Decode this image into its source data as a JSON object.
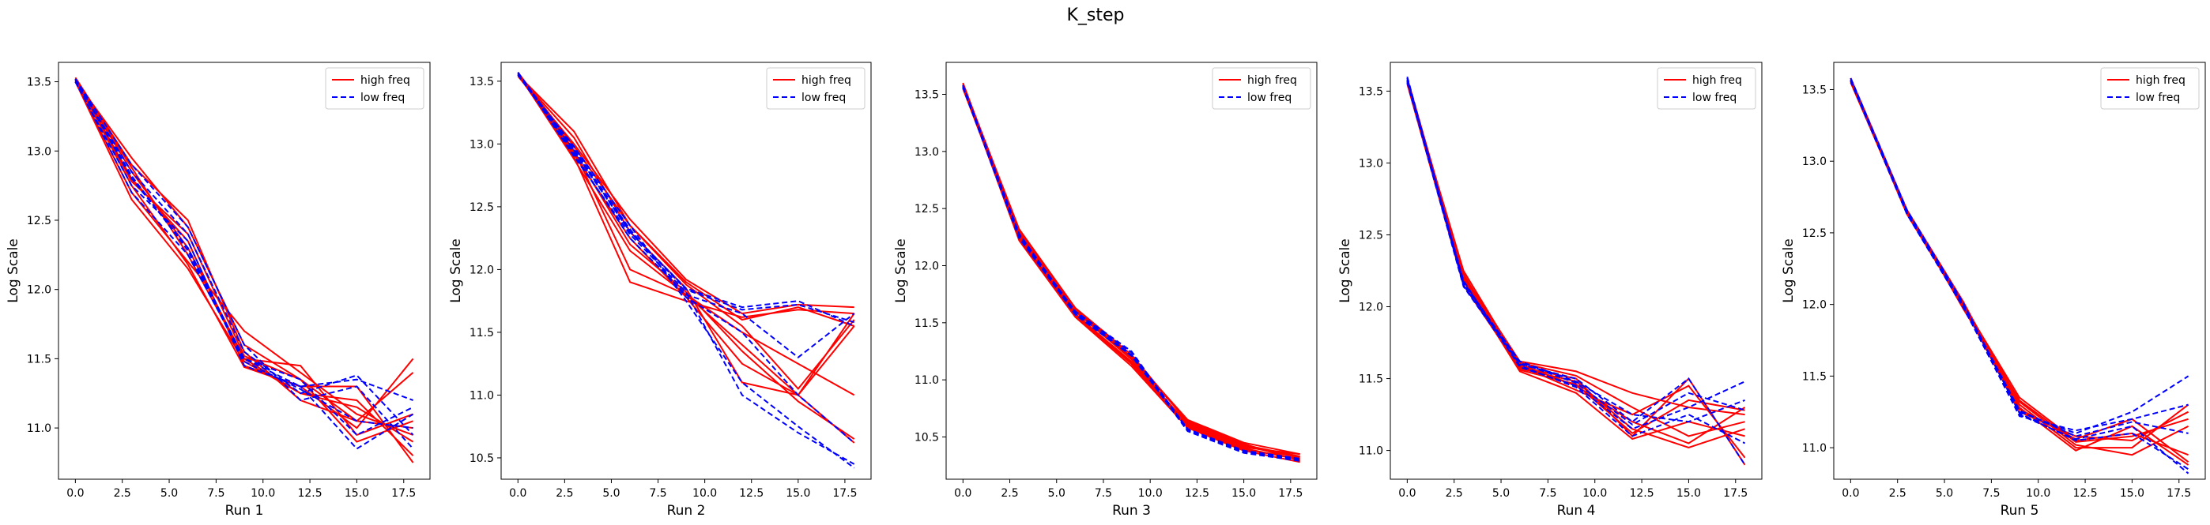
{
  "title": "K_step",
  "legend": {
    "high_label": "high freq",
    "low_label": "low freq",
    "placement": "upper right"
  },
  "colors": {
    "high": "#ff0000",
    "low": "#0000ff"
  },
  "chart_data": [
    {
      "type": "line",
      "xlabel": "Run 1",
      "ylabel": "Log Scale",
      "xlim": [
        -0.9,
        18.9
      ],
      "ylim": [
        10.63,
        13.64
      ],
      "xticks": [
        "0.0",
        "2.5",
        "5.0",
        "7.5",
        "10.0",
        "12.5",
        "15.0",
        "17.5"
      ],
      "yticks": [
        "11.0",
        "11.5",
        "12.0",
        "12.5",
        "13.0",
        "13.5"
      ],
      "x": [
        0,
        3,
        6,
        9,
        12,
        15,
        18
      ],
      "series": [
        {
          "group": "high",
          "values": [
            13.52,
            12.75,
            12.18,
            11.44,
            11.3,
            11.0,
            11.5
          ]
        },
        {
          "group": "high",
          "values": [
            13.52,
            12.85,
            12.3,
            11.5,
            11.25,
            11.2,
            10.8
          ]
        },
        {
          "group": "high",
          "values": [
            13.51,
            12.95,
            12.45,
            11.6,
            11.35,
            10.9,
            11.05
          ]
        },
        {
          "group": "high",
          "values": [
            13.5,
            12.7,
            12.2,
            11.7,
            11.4,
            11.1,
            10.95
          ]
        },
        {
          "group": "high",
          "values": [
            13.53,
            12.9,
            12.5,
            11.55,
            11.2,
            11.05,
            11.4
          ]
        },
        {
          "group": "high",
          "values": [
            13.52,
            12.8,
            12.35,
            11.45,
            11.3,
            11.3,
            10.75
          ]
        },
        {
          "group": "high",
          "values": [
            13.51,
            12.88,
            12.25,
            11.5,
            11.45,
            10.95,
            11.1
          ]
        },
        {
          "group": "high",
          "values": [
            13.5,
            12.65,
            12.15,
            11.48,
            11.25,
            11.15,
            10.9
          ]
        },
        {
          "group": "high",
          "values": [
            13.52,
            12.78,
            12.4,
            11.52,
            11.35,
            11.05,
            11.0
          ]
        },
        {
          "group": "low",
          "values": [
            13.52,
            12.8,
            12.3,
            11.5,
            11.3,
            11.35,
            11.2
          ]
        },
        {
          "group": "low",
          "values": [
            13.51,
            12.85,
            12.4,
            11.55,
            11.25,
            11.38,
            10.95
          ]
        },
        {
          "group": "low",
          "values": [
            13.5,
            12.75,
            12.35,
            11.45,
            11.3,
            10.85,
            11.1
          ]
        },
        {
          "group": "low",
          "values": [
            13.52,
            12.9,
            12.45,
            11.6,
            11.2,
            11.3,
            10.85
          ]
        },
        {
          "group": "low",
          "values": [
            13.51,
            12.7,
            12.25,
            11.5,
            11.35,
            10.95,
            11.15
          ]
        },
        {
          "group": "low",
          "values": [
            13.52,
            12.82,
            12.28,
            11.48,
            11.28,
            11.05,
            11.0
          ]
        }
      ]
    },
    {
      "type": "line",
      "xlabel": "Run 2",
      "ylabel": "Log Scale",
      "xlim": [
        -0.9,
        18.9
      ],
      "ylim": [
        10.33,
        13.65
      ],
      "xticks": [
        "0.0",
        "2.5",
        "5.0",
        "7.5",
        "10.0",
        "12.5",
        "15.0",
        "17.5"
      ],
      "yticks": [
        "10.5",
        "11.0",
        "11.5",
        "12.0",
        "12.5",
        "13.0",
        "13.5"
      ],
      "x": [
        0,
        3,
        6,
        9,
        12,
        15,
        18
      ],
      "series": [
        {
          "group": "high",
          "values": [
            13.56,
            12.9,
            11.9,
            11.75,
            11.62,
            11.68,
            11.65
          ]
        },
        {
          "group": "high",
          "values": [
            13.55,
            13.1,
            12.35,
            11.9,
            11.6,
            11.7,
            11.55
          ]
        },
        {
          "group": "high",
          "values": [
            13.57,
            12.95,
            12.0,
            11.8,
            11.4,
            11.0,
            11.65
          ]
        },
        {
          "group": "high",
          "values": [
            13.55,
            13.05,
            12.3,
            11.85,
            11.1,
            11.0,
            11.55
          ]
        },
        {
          "group": "high",
          "values": [
            13.56,
            12.88,
            12.15,
            11.8,
            11.5,
            11.25,
            11.0
          ]
        },
        {
          "group": "high",
          "values": [
            13.54,
            13.0,
            12.4,
            11.92,
            11.65,
            11.72,
            11.7
          ]
        },
        {
          "group": "high",
          "values": [
            13.55,
            12.92,
            12.25,
            11.78,
            11.25,
            11.0,
            10.62
          ]
        },
        {
          "group": "high",
          "values": [
            13.57,
            12.98,
            12.35,
            11.88,
            11.55,
            11.05,
            11.6
          ]
        },
        {
          "group": "high",
          "values": [
            13.56,
            12.94,
            12.2,
            11.82,
            11.35,
            10.95,
            10.65
          ]
        },
        {
          "group": "low",
          "values": [
            13.57,
            12.95,
            12.3,
            11.85,
            11.7,
            11.75,
            11.55
          ]
        },
        {
          "group": "low",
          "values": [
            13.56,
            12.92,
            12.25,
            11.8,
            11.65,
            11.3,
            11.65
          ]
        },
        {
          "group": "low",
          "values": [
            13.55,
            12.98,
            12.35,
            11.75,
            11.1,
            10.75,
            10.42
          ]
        },
        {
          "group": "low",
          "values": [
            13.57,
            12.9,
            12.28,
            11.82,
            11.0,
            10.7,
            10.45
          ]
        },
        {
          "group": "low",
          "values": [
            13.56,
            12.96,
            12.32,
            11.78,
            11.5,
            11.0,
            10.62
          ]
        },
        {
          "group": "low",
          "values": [
            13.55,
            12.94,
            12.3,
            11.84,
            11.68,
            11.72,
            11.58
          ]
        }
      ]
    },
    {
      "type": "line",
      "xlabel": "Run 3",
      "ylabel": "Log Scale",
      "xlim": [
        -0.9,
        18.9
      ],
      "ylim": [
        10.13,
        13.78
      ],
      "xticks": [
        "0.0",
        "2.5",
        "5.0",
        "7.5",
        "10.0",
        "12.5",
        "15.0",
        "17.5"
      ],
      "yticks": [
        "10.5",
        "11.0",
        "11.5",
        "12.0",
        "12.5",
        "13.0",
        "13.5"
      ],
      "x": [
        0,
        3,
        6,
        9,
        12,
        15,
        18
      ],
      "series": [
        {
          "group": "high",
          "values": [
            13.58,
            12.3,
            11.62,
            11.2,
            10.65,
            10.45,
            10.35
          ]
        },
        {
          "group": "high",
          "values": [
            13.56,
            12.25,
            11.58,
            11.15,
            10.62,
            10.42,
            10.32
          ]
        },
        {
          "group": "high",
          "values": [
            13.6,
            12.28,
            11.6,
            11.18,
            10.6,
            10.4,
            10.3
          ]
        },
        {
          "group": "high",
          "values": [
            13.57,
            12.22,
            11.55,
            11.12,
            10.58,
            10.38,
            10.28
          ]
        },
        {
          "group": "high",
          "values": [
            13.59,
            12.32,
            11.63,
            11.22,
            10.63,
            10.43,
            10.33
          ]
        },
        {
          "group": "high",
          "values": [
            13.55,
            12.26,
            11.57,
            11.16,
            10.61,
            10.41,
            10.35
          ]
        },
        {
          "group": "high",
          "values": [
            13.58,
            12.29,
            11.61,
            11.19,
            10.64,
            10.44,
            10.29
          ]
        },
        {
          "group": "high",
          "values": [
            13.56,
            12.24,
            11.56,
            11.14,
            10.59,
            10.39,
            10.31
          ]
        },
        {
          "group": "low",
          "values": [
            13.57,
            12.27,
            11.6,
            11.25,
            10.56,
            10.37,
            10.3
          ]
        },
        {
          "group": "low",
          "values": [
            13.56,
            12.24,
            11.58,
            11.22,
            10.55,
            10.36,
            10.29
          ]
        },
        {
          "group": "low",
          "values": [
            13.58,
            12.28,
            11.59,
            11.24,
            10.57,
            10.38,
            10.31
          ]
        },
        {
          "group": "low",
          "values": [
            13.57,
            12.26,
            11.57,
            11.21,
            10.56,
            10.37,
            10.3
          ]
        }
      ]
    },
    {
      "type": "line",
      "xlabel": "Run 4",
      "ylabel": "Log Scale",
      "xlim": [
        -0.9,
        18.9
      ],
      "ylim": [
        10.8,
        13.7
      ],
      "xticks": [
        "0.0",
        "2.5",
        "5.0",
        "7.5",
        "10.0",
        "12.5",
        "15.0",
        "17.5"
      ],
      "yticks": [
        "11.0",
        "11.5",
        "12.0",
        "12.5",
        "13.0",
        "13.5"
      ],
      "x": [
        0,
        3,
        6,
        9,
        12,
        15,
        18
      ],
      "series": [
        {
          "group": "high",
          "values": [
            13.58,
            12.2,
            11.58,
            11.5,
            11.1,
            11.5,
            10.9
          ]
        },
        {
          "group": "high",
          "values": [
            13.56,
            12.25,
            11.6,
            11.45,
            11.2,
            11.05,
            11.3
          ]
        },
        {
          "group": "high",
          "values": [
            13.57,
            12.18,
            11.55,
            11.4,
            11.08,
            11.2,
            11.1
          ]
        },
        {
          "group": "high",
          "values": [
            13.59,
            12.22,
            11.62,
            11.55,
            11.4,
            11.3,
            11.25
          ]
        },
        {
          "group": "high",
          "values": [
            13.55,
            12.15,
            11.57,
            11.48,
            11.15,
            11.02,
            11.15
          ]
        },
        {
          "group": "high",
          "values": [
            13.58,
            12.21,
            11.59,
            11.42,
            11.25,
            11.45,
            10.95
          ]
        },
        {
          "group": "high",
          "values": [
            13.57,
            12.19,
            11.61,
            11.52,
            11.3,
            11.1,
            11.2
          ]
        },
        {
          "group": "high",
          "values": [
            13.56,
            12.23,
            11.56,
            11.46,
            11.12,
            11.35,
            11.28
          ]
        },
        {
          "group": "low",
          "values": [
            13.6,
            12.15,
            11.6,
            11.5,
            11.2,
            11.5,
            10.9
          ]
        },
        {
          "group": "low",
          "values": [
            13.57,
            12.18,
            11.58,
            11.45,
            11.15,
            11.3,
            11.48
          ]
        },
        {
          "group": "low",
          "values": [
            13.58,
            12.16,
            11.62,
            11.48,
            11.25,
            11.2,
            11.35
          ]
        },
        {
          "group": "low",
          "values": [
            13.56,
            12.14,
            11.59,
            11.44,
            11.1,
            11.25,
            11.05
          ]
        },
        {
          "group": "low",
          "values": [
            13.59,
            12.17,
            11.61,
            11.47,
            11.18,
            11.4,
            11.28
          ]
        }
      ]
    },
    {
      "type": "line",
      "xlabel": "Run 5",
      "ylabel": "Log Scale",
      "xlim": [
        -0.9,
        18.9
      ],
      "ylim": [
        10.78,
        13.69
      ],
      "xticks": [
        "0.0",
        "2.5",
        "5.0",
        "7.5",
        "10.0",
        "12.5",
        "15.0",
        "17.5"
      ],
      "yticks": [
        "11.0",
        "11.5",
        "12.0",
        "12.5",
        "13.0",
        "13.5"
      ],
      "x": [
        0,
        3,
        6,
        9,
        12,
        15,
        18
      ],
      "series": [
        {
          "group": "high",
          "values": [
            13.57,
            12.65,
            12.0,
            11.35,
            11.05,
            11.1,
            10.95
          ]
        },
        {
          "group": "high",
          "values": [
            13.55,
            12.64,
            11.98,
            11.3,
            11.0,
            11.0,
            11.3
          ]
        },
        {
          "group": "high",
          "values": [
            13.58,
            12.66,
            12.02,
            11.28,
            10.98,
            11.15,
            10.88
          ]
        },
        {
          "group": "high",
          "values": [
            13.56,
            12.63,
            11.99,
            11.25,
            11.08,
            11.05,
            11.25
          ]
        },
        {
          "group": "high",
          "values": [
            13.57,
            12.65,
            12.01,
            11.32,
            11.02,
            10.95,
            11.15
          ]
        },
        {
          "group": "high",
          "values": [
            13.55,
            12.64,
            12.0,
            11.27,
            11.06,
            11.2,
            10.9
          ]
        },
        {
          "group": "high",
          "values": [
            13.58,
            12.66,
            11.97,
            11.33,
            11.04,
            11.08,
            11.2
          ]
        },
        {
          "group": "low",
          "values": [
            13.57,
            12.65,
            12.0,
            11.25,
            11.1,
            11.25,
            11.5
          ]
        },
        {
          "group": "low",
          "values": [
            13.56,
            12.64,
            11.99,
            11.22,
            11.12,
            11.2,
            11.3
          ]
        },
        {
          "group": "low",
          "values": [
            13.58,
            12.66,
            12.01,
            11.24,
            11.05,
            11.1,
            10.85
          ]
        },
        {
          "group": "low",
          "values": [
            13.57,
            12.65,
            12.0,
            11.26,
            11.08,
            11.18,
            11.1
          ]
        },
        {
          "group": "low",
          "values": [
            13.56,
            12.63,
            11.98,
            11.23,
            11.06,
            11.15,
            10.82
          ]
        }
      ]
    }
  ]
}
